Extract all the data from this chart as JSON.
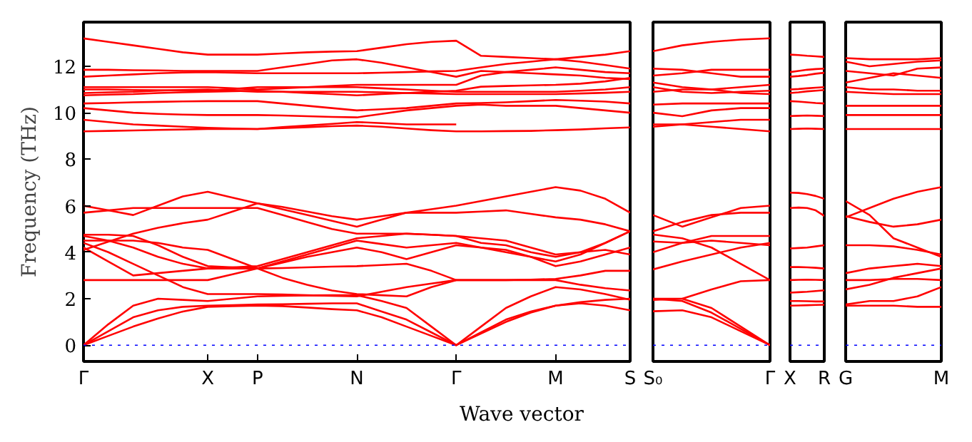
{
  "chart_data": [
    {
      "type": "line",
      "xlabel": "Wave vector",
      "ylabel": "Frequency (THz)",
      "color": "#ff0000",
      "ylim": [
        -0.7,
        13.9
      ],
      "yticks": [
        0,
        2,
        4,
        6,
        8,
        10,
        12
      ],
      "categories": [
        "Γ",
        null,
        null,
        null,
        null,
        "X",
        null,
        "P",
        null,
        null,
        null,
        "N",
        null,
        null,
        null,
        "Γ",
        null,
        null,
        null,
        "M",
        null,
        null,
        "S"
      ],
      "grid": false,
      "line_style": "solid",
      "ref_lines": [
        {
          "axis": "y",
          "value": 0,
          "color": "#0000ff",
          "line_style": "dotted"
        }
      ],
      "series": [
        {
          "values": [
            0,
            0.4,
            0.8,
            1.15,
            1.45,
            1.65,
            1.68,
            1.7,
            1.68,
            1.62,
            1.55,
            1.5,
            1.2,
            0.8,
            0.4,
            0,
            0.5,
            1.0,
            1.4,
            1.7,
            1.8,
            1.7,
            1.5
          ]
        },
        {
          "values": [
            0,
            0.6,
            1.2,
            1.5,
            1.65,
            1.7,
            1.72,
            1.75,
            1.76,
            1.78,
            1.8,
            1.8,
            1.45,
            1.1,
            0.55,
            0,
            0.55,
            1.1,
            1.45,
            1.7,
            1.85,
            1.95,
            2.0
          ]
        },
        {
          "values": [
            0,
            0.9,
            1.7,
            2.0,
            1.95,
            1.9,
            2.0,
            2.1,
            2.12,
            2.14,
            2.15,
            2.15,
            1.9,
            1.6,
            0.8,
            0,
            0.8,
            1.6,
            2.1,
            2.5,
            2.4,
            2.2,
            1.95
          ]
        },
        {
          "values": [
            2.8,
            2.8,
            2.8,
            2.8,
            2.8,
            2.8,
            3.05,
            3.3,
            3.55,
            3.8,
            4.0,
            4.2,
            4.0,
            3.7,
            4.0,
            4.3,
            4.2,
            4.1,
            3.8,
            3.4,
            3.6,
            3.9,
            4.2
          ]
        },
        {
          "values": [
            4.4,
            4.0,
            3.5,
            3.0,
            2.5,
            2.2,
            2.2,
            2.2,
            2.18,
            2.15,
            2.12,
            2.1,
            2.3,
            2.5,
            2.65,
            2.8,
            2.8,
            2.8,
            2.82,
            2.85,
            3.0,
            3.2,
            3.2
          ]
        },
        {
          "values": [
            4.5,
            4.5,
            4.5,
            4.4,
            4.2,
            4.1,
            3.7,
            3.3,
            2.9,
            2.6,
            2.35,
            2.2,
            2.15,
            2.1,
            2.5,
            2.8,
            2.8,
            2.8,
            2.8,
            2.8,
            2.6,
            2.45,
            2.35
          ]
        },
        {
          "values": [
            4.2,
            3.6,
            3.0,
            3.1,
            3.2,
            3.3,
            3.3,
            3.3,
            3.32,
            3.35,
            3.38,
            3.4,
            3.45,
            3.5,
            3.2,
            2.8,
            null,
            null,
            null,
            null,
            null,
            null,
            null
          ]
        },
        {
          "values": [
            4.1,
            4.45,
            4.8,
            5.05,
            5.25,
            5.4,
            5.75,
            6.1,
            5.95,
            5.75,
            5.55,
            5.4,
            5.55,
            5.7,
            5.85,
            6.0,
            6.2,
            6.4,
            6.6,
            6.8,
            6.65,
            6.3,
            5.7
          ]
        },
        {
          "values": [
            4.75,
            4.75,
            4.7,
            4.3,
            3.8,
            3.4,
            3.35,
            3.3,
            3.6,
            3.9,
            4.2,
            4.5,
            4.35,
            4.2,
            4.3,
            4.4,
            4.2,
            4.0,
            3.8,
            3.6,
            3.9,
            4.4,
            4.9
          ]
        },
        {
          "values": [
            4.7,
            4.5,
            4.2,
            3.8,
            3.5,
            3.3,
            3.35,
            3.4,
            3.7,
            4.0,
            4.3,
            4.6,
            4.7,
            4.8,
            4.75,
            4.7,
            4.6,
            4.5,
            4.2,
            3.9,
            4.0,
            4.1,
            3.9
          ]
        },
        {
          "values": [
            6.0,
            5.8,
            5.6,
            6.0,
            6.4,
            6.6,
            6.35,
            6.1,
            5.85,
            5.6,
            5.35,
            5.1,
            5.4,
            5.7,
            5.7,
            5.7,
            5.75,
            5.8,
            5.65,
            5.5,
            5.4,
            5.2,
            4.9
          ]
        },
        {
          "values": [
            5.7,
            5.8,
            5.9,
            5.9,
            5.9,
            5.9,
            5.9,
            5.9,
            5.6,
            5.3,
            5.0,
            4.8,
            4.8,
            4.8,
            4.75,
            4.7,
            4.4,
            4.3,
            4.0,
            3.8,
            4.0,
            4.4,
            4.9
          ]
        },
        {
          "values": [
            13.2,
            13.05,
            12.9,
            12.75,
            12.6,
            12.5,
            12.5,
            12.5,
            12.55,
            12.6,
            12.63,
            12.65,
            12.8,
            12.95,
            13.05,
            13.1,
            12.45,
            12.4,
            12.35,
            12.3,
            12.4,
            12.5,
            12.65
          ]
        },
        {
          "values": [
            11.85,
            11.85,
            11.83,
            11.82,
            11.8,
            11.8,
            11.8,
            11.8,
            11.95,
            12.1,
            12.25,
            12.3,
            12.15,
            11.95,
            11.75,
            11.55,
            11.8,
            11.75,
            11.7,
            11.65,
            11.6,
            11.5,
            11.45
          ]
        },
        {
          "values": [
            11.55,
            11.6,
            11.65,
            11.7,
            11.73,
            11.75,
            11.72,
            11.7,
            11.7,
            11.7,
            11.7,
            11.7,
            11.72,
            11.75,
            11.78,
            11.8,
            11.95,
            12.1,
            12.2,
            12.3,
            12.2,
            12.05,
            11.9
          ]
        },
        {
          "values": [
            11.1,
            11.1,
            11.1,
            11.1,
            11.1,
            11.1,
            11.05,
            11.0,
            11.05,
            11.1,
            11.15,
            11.2,
            11.2,
            11.2,
            11.2,
            11.2,
            11.6,
            11.75,
            11.85,
            11.95,
            11.85,
            11.75,
            11.7
          ]
        },
        {
          "values": [
            11.0,
            11.0,
            10.98,
            10.97,
            10.96,
            10.95,
            11.02,
            11.1,
            11.1,
            11.1,
            11.1,
            11.1,
            11.05,
            11.0,
            10.95,
            10.9,
            10.9,
            10.9,
            10.9,
            10.9,
            10.95,
            11.0,
            11.1
          ]
        },
        {
          "values": [
            10.85,
            10.88,
            10.9,
            10.95,
            10.98,
            11.0,
            10.95,
            10.9,
            10.9,
            10.9,
            10.9,
            10.9,
            10.88,
            10.85,
            10.83,
            10.8,
            10.8,
            10.8,
            10.8,
            10.8,
            10.83,
            10.86,
            10.9
          ]
        },
        {
          "values": [
            10.75,
            10.78,
            10.8,
            10.85,
            10.88,
            10.9,
            10.93,
            10.95,
            10.9,
            10.85,
            10.8,
            10.75,
            10.8,
            10.85,
            10.9,
            10.95,
            11.12,
            11.15,
            11.18,
            11.2,
            11.25,
            11.35,
            11.5
          ]
        },
        {
          "values": [
            10.4,
            10.42,
            10.45,
            10.47,
            10.49,
            10.5,
            10.5,
            10.5,
            10.4,
            10.3,
            10.2,
            10.1,
            10.15,
            10.2,
            10.3,
            10.4,
            10.42,
            10.45,
            10.5,
            10.55,
            10.52,
            10.48,
            10.4
          ]
        },
        {
          "values": [
            10.2,
            10.1,
            10.0,
            9.95,
            9.92,
            9.9,
            9.9,
            9.9,
            9.88,
            9.85,
            9.82,
            9.8,
            9.95,
            10.1,
            10.2,
            10.3,
            10.35,
            10.3,
            10.3,
            10.3,
            10.2,
            10.1,
            10.0
          ]
        },
        {
          "values": [
            9.7,
            9.6,
            9.5,
            9.45,
            9.4,
            9.35,
            9.32,
            9.3,
            9.38,
            9.45,
            9.52,
            9.6,
            9.55,
            9.5,
            9.5,
            9.5,
            null,
            null,
            null,
            null,
            null,
            null,
            null
          ]
        },
        {
          "values": [
            9.2,
            9.22,
            9.24,
            9.26,
            9.28,
            9.3,
            9.3,
            9.3,
            9.34,
            9.38,
            9.42,
            9.45,
            9.4,
            9.32,
            9.25,
            9.2,
            9.2,
            9.21,
            9.22,
            9.25,
            9.28,
            9.33,
            9.37
          ]
        }
      ]
    },
    {
      "type": "line",
      "color": "#ff0000",
      "ylim": [
        -0.7,
        13.9
      ],
      "yticks": [
        0,
        2,
        4,
        6,
        8,
        10,
        12
      ],
      "tick_labels": "x",
      "categories": [
        "S₀",
        null,
        null,
        null,
        "Γ"
      ],
      "grid": false,
      "line_style": "solid",
      "ref_lines": [
        {
          "axis": "y",
          "value": 0,
          "color": "#0000ff",
          "line_style": "dotted"
        }
      ],
      "series": [
        {
          "values": [
            1.46,
            1.5,
            1.2,
            0.6,
            0
          ]
        },
        {
          "values": [
            2.0,
            1.9,
            1.4,
            0.7,
            0
          ]
        },
        {
          "values": [
            2.0,
            2.0,
            1.6,
            0.8,
            0
          ]
        },
        {
          "values": [
            1.95,
            2.0,
            2.4,
            2.75,
            2.8
          ]
        },
        {
          "values": [
            3.26,
            3.6,
            3.9,
            4.2,
            4.4
          ]
        },
        {
          "values": [
            4.76,
            4.6,
            4.2,
            3.5,
            2.8
          ]
        },
        {
          "values": [
            4.46,
            4.4,
            4.7,
            4.7,
            4.7
          ]
        },
        {
          "values": [
            4.0,
            4.4,
            4.5,
            4.4,
            4.3
          ]
        },
        {
          "values": [
            4.9,
            5.3,
            5.6,
            5.7,
            5.7
          ]
        },
        {
          "values": [
            5.6,
            5.1,
            5.5,
            5.9,
            6.0
          ]
        },
        {
          "values": [
            12.65,
            12.9,
            13.05,
            13.15,
            13.2
          ]
        },
        {
          "values": [
            11.9,
            11.85,
            11.7,
            11.55,
            11.55
          ]
        },
        {
          "values": [
            11.6,
            11.7,
            11.85,
            11.85,
            11.85
          ]
        },
        {
          "values": [
            11.3,
            11.1,
            11.0,
            11.1,
            11.2
          ]
        },
        {
          "values": [
            11.1,
            10.9,
            10.85,
            10.9,
            10.95
          ]
        },
        {
          "values": [
            10.9,
            11.0,
            11.0,
            10.85,
            10.8
          ]
        },
        {
          "values": [
            10.0,
            9.85,
            10.1,
            10.2,
            10.2
          ]
        },
        {
          "values": [
            10.35,
            10.4,
            10.4,
            10.4,
            10.4
          ]
        },
        {
          "values": [
            9.5,
            9.5,
            9.6,
            9.7,
            9.7
          ]
        },
        {
          "values": [
            9.4,
            9.5,
            9.4,
            9.3,
            9.2
          ]
        }
      ]
    },
    {
      "type": "line",
      "color": "#ff0000",
      "ylim": [
        -0.7,
        13.9
      ],
      "yticks": [
        0,
        2,
        4,
        6,
        8,
        10,
        12
      ],
      "tick_labels": "x",
      "categories": [
        "X",
        null,
        null,
        null,
        "R"
      ],
      "grid": false,
      "line_style": "solid",
      "ref_lines": [
        {
          "axis": "y",
          "value": 0,
          "color": "#0000ff",
          "line_style": "dotted"
        }
      ],
      "series": [
        {
          "values": [
            6.56,
            6.55,
            6.5,
            6.42,
            6.3
          ]
        },
        {
          "values": [
            5.9,
            5.92,
            5.9,
            5.8,
            5.56
          ]
        },
        {
          "values": [
            4.16,
            4.18,
            4.2,
            4.25,
            4.3
          ]
        },
        {
          "values": [
            3.36,
            3.36,
            3.35,
            3.33,
            3.3
          ]
        },
        {
          "values": [
            2.8,
            2.81,
            2.82,
            2.81,
            2.8
          ]
        },
        {
          "values": [
            2.26,
            2.28,
            2.3,
            2.33,
            2.36
          ]
        },
        {
          "values": [
            1.9,
            1.9,
            1.89,
            1.88,
            1.88
          ]
        },
        {
          "values": [
            1.7,
            1.71,
            1.72,
            1.73,
            1.74
          ]
        },
        {
          "values": [
            12.5,
            12.48,
            12.45,
            12.43,
            12.4
          ]
        },
        {
          "values": [
            11.75,
            11.8,
            11.85,
            11.88,
            11.9
          ]
        },
        {
          "values": [
            11.55,
            11.58,
            11.62,
            11.68,
            11.72
          ]
        },
        {
          "values": [
            11.0,
            11.02,
            11.05,
            11.08,
            11.1
          ]
        },
        {
          "values": [
            10.85,
            10.88,
            10.92,
            10.95,
            10.98
          ]
        },
        {
          "values": [
            10.5,
            10.48,
            10.45,
            10.42,
            10.4
          ]
        },
        {
          "values": [
            9.86,
            9.87,
            9.88,
            9.87,
            9.86
          ]
        },
        {
          "values": [
            9.3,
            9.31,
            9.32,
            9.31,
            9.3
          ]
        }
      ]
    },
    {
      "type": "line",
      "color": "#ff0000",
      "ylim": [
        -0.7,
        13.9
      ],
      "yticks": [
        0,
        2,
        4,
        6,
        8,
        10,
        12
      ],
      "tick_labels": "x",
      "categories": [
        "G",
        null,
        null,
        null,
        "M"
      ],
      "grid": false,
      "line_style": "solid",
      "ref_lines": [
        {
          "axis": "y",
          "value": 0,
          "color": "#0000ff",
          "line_style": "dotted"
        }
      ],
      "series": [
        {
          "values": [
            6.2,
            5.6,
            4.6,
            4.2,
            3.8
          ]
        },
        {
          "values": [
            5.5,
            5.9,
            6.3,
            6.6,
            6.8
          ]
        },
        {
          "values": [
            5.55,
            5.3,
            5.1,
            5.2,
            5.4
          ]
        },
        {
          "values": [
            4.3,
            4.3,
            4.25,
            4.1,
            3.9
          ]
        },
        {
          "values": [
            3.1,
            3.3,
            3.4,
            3.5,
            3.4
          ]
        },
        {
          "values": [
            2.8,
            2.8,
            2.85,
            2.85,
            2.8
          ]
        },
        {
          "values": [
            2.4,
            2.6,
            2.9,
            3.1,
            3.3
          ]
        },
        {
          "values": [
            1.75,
            1.9,
            1.9,
            2.1,
            2.5
          ]
        },
        {
          "values": [
            1.7,
            1.7,
            1.7,
            1.65,
            1.65
          ]
        },
        {
          "values": [
            12.35,
            12.3,
            12.3,
            12.3,
            12.35
          ]
        },
        {
          "values": [
            12.2,
            12.0,
            12.1,
            12.2,
            12.25
          ]
        },
        {
          "values": [
            11.8,
            11.7,
            11.6,
            11.9,
            11.95
          ]
        },
        {
          "values": [
            11.3,
            11.5,
            11.7,
            11.6,
            11.5
          ]
        },
        {
          "values": [
            11.1,
            11.0,
            11.0,
            10.95,
            10.95
          ]
        },
        {
          "values": [
            10.9,
            10.85,
            10.8,
            10.8,
            10.8
          ]
        },
        {
          "values": [
            10.3,
            10.3,
            10.3,
            10.3,
            10.3
          ]
        },
        {
          "values": [
            9.9,
            9.9,
            9.9,
            9.9,
            9.9
          ]
        },
        {
          "values": [
            9.3,
            9.3,
            9.3,
            9.3,
            9.3
          ]
        }
      ]
    }
  ]
}
